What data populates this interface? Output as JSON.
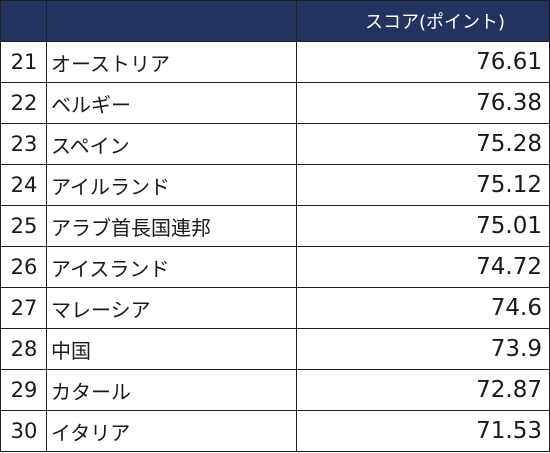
{
  "table": {
    "header": {
      "rank": "",
      "country": "",
      "score": "スコア(ポイント)"
    },
    "rows": [
      {
        "rank": "21",
        "country": "オーストリア",
        "score": "76.61"
      },
      {
        "rank": "22",
        "country": "ベルギー",
        "score": "76.38"
      },
      {
        "rank": "23",
        "country": "スペイン",
        "score": "75.28"
      },
      {
        "rank": "24",
        "country": "アイルランド",
        "score": "75.12"
      },
      {
        "rank": "25",
        "country": "アラブ首長国連邦",
        "score": "75.01"
      },
      {
        "rank": "26",
        "country": "アイスランド",
        "score": "74.72"
      },
      {
        "rank": "27",
        "country": "マレーシア",
        "score": "74.6"
      },
      {
        "rank": "28",
        "country": "中国",
        "score": "73.9"
      },
      {
        "rank": "29",
        "country": "カタール",
        "score": "72.87"
      },
      {
        "rank": "30",
        "country": "イタリア",
        "score": "71.53"
      }
    ]
  },
  "colors": {
    "header_background": "#22335f",
    "header_text": "#ffffff",
    "border": "#1f1f1f",
    "body_text": "#1a1a1a"
  }
}
